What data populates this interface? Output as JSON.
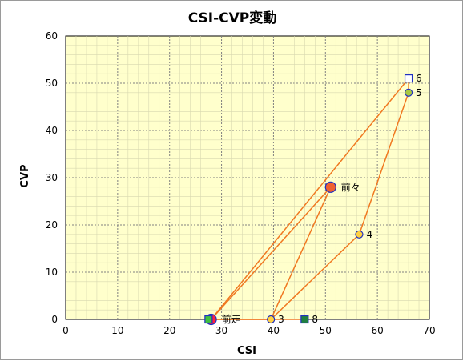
{
  "chart_data": {
    "type": "scatter",
    "title": "CSI-CVP変動",
    "xlabel": "CSI",
    "ylabel": "CVP",
    "xlim": [
      0,
      70
    ],
    "ylim": [
      0,
      60
    ],
    "x_ticks": [
      0,
      10,
      20,
      30,
      40,
      50,
      60,
      70
    ],
    "y_ticks": [
      0,
      10,
      20,
      30,
      40,
      50,
      60
    ],
    "grid": true,
    "colors": {
      "plot_background": "#ffffcc",
      "grid": "#808080",
      "connector": "#f07820",
      "marker_orange": "#f06030",
      "marker_yellow": "#ffd040",
      "marker_olive": "#a8c840",
      "marker_green": "#40c040",
      "marker_darkgreen": "#208040",
      "marker_red": "#ff2040",
      "marker_edge_blue": "#2030c0"
    },
    "points": [
      {
        "label": "前々",
        "x": 51,
        "y": 28,
        "marker": "circle",
        "fill": "#f06030",
        "size": "large"
      },
      {
        "label": "4",
        "x": 56.5,
        "y": 18,
        "marker": "circle",
        "fill": "#ffd040",
        "size": "small"
      },
      {
        "label": "5",
        "x": 66,
        "y": 48,
        "marker": "circle",
        "fill": "#a8c840",
        "size": "small"
      },
      {
        "label": "6",
        "x": 66,
        "y": 51,
        "marker": "square",
        "fill": "#ffffff",
        "size": "small"
      },
      {
        "label": "3",
        "x": 39.5,
        "y": 0,
        "marker": "circle",
        "fill": "#ffd040",
        "size": "small"
      },
      {
        "label": "8",
        "x": 46,
        "y": 0,
        "marker": "square",
        "fill": "#208040",
        "size": "small"
      },
      {
        "label": "前走",
        "x": 28,
        "y": 0,
        "marker": "circle",
        "fill": "#ff2040",
        "size": "large"
      },
      {
        "label": "",
        "x": 27.5,
        "y": 0,
        "marker": "square",
        "fill": "#40c040",
        "size": "small"
      }
    ],
    "lines": [
      [
        [
          28,
          0
        ],
        [
          51,
          28
        ]
      ],
      [
        [
          28,
          0
        ],
        [
          66,
          51
        ]
      ],
      [
        [
          28,
          0
        ],
        [
          39.5,
          0
        ]
      ],
      [
        [
          39.5,
          0
        ],
        [
          51,
          28
        ]
      ],
      [
        [
          39.5,
          0
        ],
        [
          56.5,
          18
        ]
      ],
      [
        [
          56.5,
          18
        ],
        [
          66,
          48
        ]
      ],
      [
        [
          66,
          48
        ],
        [
          66,
          51
        ]
      ],
      [
        [
          28,
          0
        ],
        [
          46,
          0
        ]
      ]
    ]
  }
}
